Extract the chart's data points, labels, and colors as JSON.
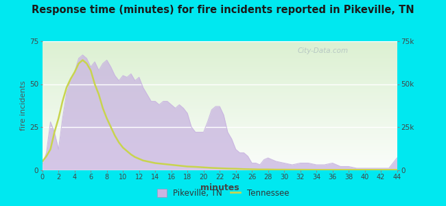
{
  "title": "Response time (minutes) for fire incidents reported in Pikeville, TN",
  "xlabel": "minutes",
  "ylabel_left": "fire incidents",
  "bg_color": "#00e8f0",
  "x_ticks": [
    0,
    2,
    4,
    6,
    8,
    10,
    12,
    14,
    16,
    18,
    20,
    22,
    24,
    26,
    28,
    30,
    32,
    34,
    36,
    38,
    40,
    42,
    44
  ],
  "ylim_left": [
    0,
    75
  ],
  "ylim_right": [
    0,
    75000
  ],
  "y_ticks_left": [
    0,
    25,
    50,
    75
  ],
  "y_ticks_right": [
    0,
    25000,
    50000,
    75000
  ],
  "y_tick_labels_right": [
    "0",
    "25k",
    "50k",
    "75k"
  ],
  "pikeville_x": [
    0,
    0.5,
    1,
    1.5,
    2,
    2.5,
    3,
    3.5,
    4,
    4.5,
    5,
    5.5,
    6,
    6.5,
    7,
    7.5,
    8,
    8.5,
    9,
    9.5,
    10,
    10.5,
    11,
    11.5,
    12,
    12.5,
    13,
    13.5,
    14,
    14.5,
    15,
    15.5,
    16,
    16.5,
    17,
    17.5,
    18,
    18.5,
    19,
    19.5,
    20,
    20.5,
    21,
    21.5,
    22,
    22.5,
    23,
    23.5,
    24,
    24.5,
    25,
    25.5,
    26,
    26.5,
    27,
    27.5,
    28,
    28.5,
    29,
    30,
    31,
    32,
    33,
    34,
    35,
    36,
    37,
    38,
    39,
    40,
    41,
    42,
    43,
    44
  ],
  "pikeville_y": [
    3,
    10,
    28,
    22,
    12,
    30,
    45,
    52,
    57,
    65,
    67,
    65,
    60,
    63,
    58,
    62,
    64,
    60,
    55,
    52,
    55,
    54,
    56,
    52,
    54,
    48,
    44,
    40,
    40,
    38,
    40,
    40,
    38,
    36,
    38,
    36,
    33,
    25,
    22,
    22,
    22,
    28,
    35,
    37,
    37,
    32,
    22,
    18,
    12,
    10,
    10,
    8,
    4,
    4,
    3,
    6,
    7,
    6,
    5,
    4,
    3,
    4,
    4,
    3,
    3,
    4,
    2,
    2,
    1,
    1,
    1,
    1,
    1,
    7
  ],
  "tennessee_x": [
    0,
    0.5,
    1,
    1.5,
    2,
    2.5,
    3,
    3.5,
    4,
    4.5,
    5,
    5.5,
    6,
    6.5,
    7,
    7.5,
    8,
    8.5,
    9,
    9.5,
    10,
    10.5,
    11,
    11.5,
    12,
    12.5,
    13,
    14,
    15,
    16,
    17,
    18,
    19,
    20,
    21,
    22,
    23,
    24,
    25,
    26,
    27,
    28,
    29,
    30,
    32,
    34,
    36,
    38,
    40,
    42,
    44
  ],
  "tennessee_y": [
    5,
    8,
    12,
    22,
    30,
    40,
    48,
    53,
    57,
    62,
    64,
    62,
    58,
    50,
    44,
    36,
    30,
    25,
    20,
    16,
    13,
    11,
    9,
    7.5,
    6.5,
    5.5,
    5,
    4,
    3.5,
    3,
    2.5,
    2,
    1.8,
    1.5,
    1.2,
    1,
    0.8,
    0.7,
    0.5,
    0.4,
    0.3,
    0.3,
    0.2,
    0.2,
    0.15,
    0.1,
    0.1,
    0.1,
    0.1,
    0.1,
    0.1
  ],
  "fill_color": "#c8b4e0",
  "fill_alpha": 0.75,
  "line_color_tn": "#c8d44e",
  "watermark": "City-Data.com",
  "legend_pikeville": "Pikeville, TN",
  "legend_tennessee": "Tennessee",
  "plot_bg_green": [
    0.86,
    0.94,
    0.82
  ],
  "plot_bg_white": [
    0.98,
    0.99,
    0.98
  ]
}
